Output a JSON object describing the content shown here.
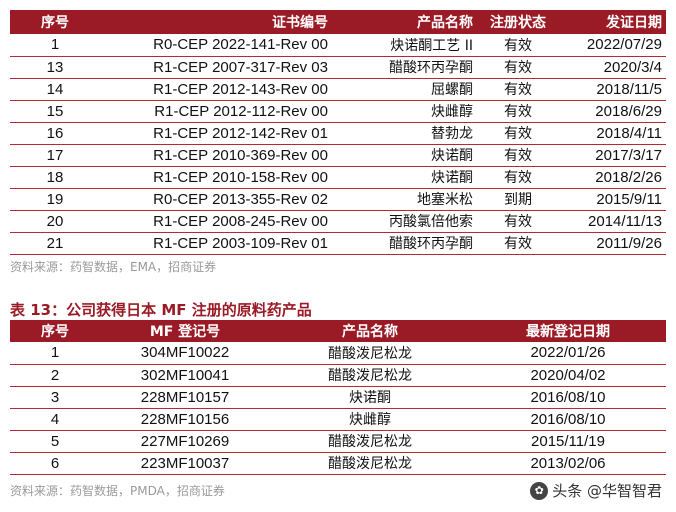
{
  "table1": {
    "headers": [
      "序号",
      "证书编号",
      "产品名称",
      "注册状态",
      "发证日期"
    ],
    "rows": [
      [
        "1",
        "R0-CEP 2022-141-Rev 00",
        "炔诺酮工艺 II",
        "有效",
        "2022/07/29"
      ],
      [
        "13",
        "R1-CEP 2007-317-Rev 03",
        "醋酸环丙孕酮",
        "有效",
        "2020/3/4"
      ],
      [
        "14",
        "R1-CEP 2012-143-Rev 00",
        "屈螺酮",
        "有效",
        "2018/11/5"
      ],
      [
        "15",
        "R1-CEP 2012-112-Rev 00",
        "炔雌醇",
        "有效",
        "2018/6/29"
      ],
      [
        "16",
        "R1-CEP 2012-142-Rev 01",
        "替勃龙",
        "有效",
        "2018/4/11"
      ],
      [
        "17",
        "R1-CEP 2010-369-Rev 00",
        "炔诺酮",
        "有效",
        "2017/3/17"
      ],
      [
        "18",
        "R1-CEP 2010-158-Rev 00",
        "炔诺酮",
        "有效",
        "2018/2/26"
      ],
      [
        "19",
        "R0-CEP 2013-355-Rev 02",
        "地塞米松",
        "到期",
        "2015/9/11"
      ],
      [
        "20",
        "R1-CEP 2008-245-Rev 00",
        "丙酸氯倍他索",
        "有效",
        "2014/11/13"
      ],
      [
        "21",
        "R1-CEP 2003-109-Rev 01",
        "醋酸环丙孕酮",
        "有效",
        "2011/9/26"
      ]
    ],
    "source": "资料来源：药智数据，EMA，招商证券"
  },
  "table2": {
    "caption": "表 13：公司获得日本 MF 注册的原料药产品",
    "headers": [
      "序号",
      "MF 登记号",
      "产品名称",
      "最新登记日期"
    ],
    "rows": [
      [
        "1",
        "304MF10022",
        "醋酸泼尼松龙",
        "2022/01/26"
      ],
      [
        "2",
        "302MF10041",
        "醋酸泼尼松龙",
        "2020/04/02"
      ],
      [
        "3",
        "228MF10157",
        "炔诺酮",
        "2016/08/10"
      ],
      [
        "4",
        "228MF10156",
        "炔雌醇",
        "2016/08/10"
      ],
      [
        "5",
        "227MF10269",
        "醋酸泼尼松龙",
        "2015/11/19"
      ],
      [
        "6",
        "223MF10037",
        "醋酸泼尼松龙",
        "2013/02/06"
      ]
    ],
    "source": "资料来源：药智数据，PMDA，招商证券"
  },
  "watermark": {
    "icon": "paw-icon",
    "text": "头条 @华智智君"
  },
  "colors": {
    "header_bg": "#9a1b26",
    "caption": "#9a1b26",
    "source": "#9a9a9a"
  }
}
